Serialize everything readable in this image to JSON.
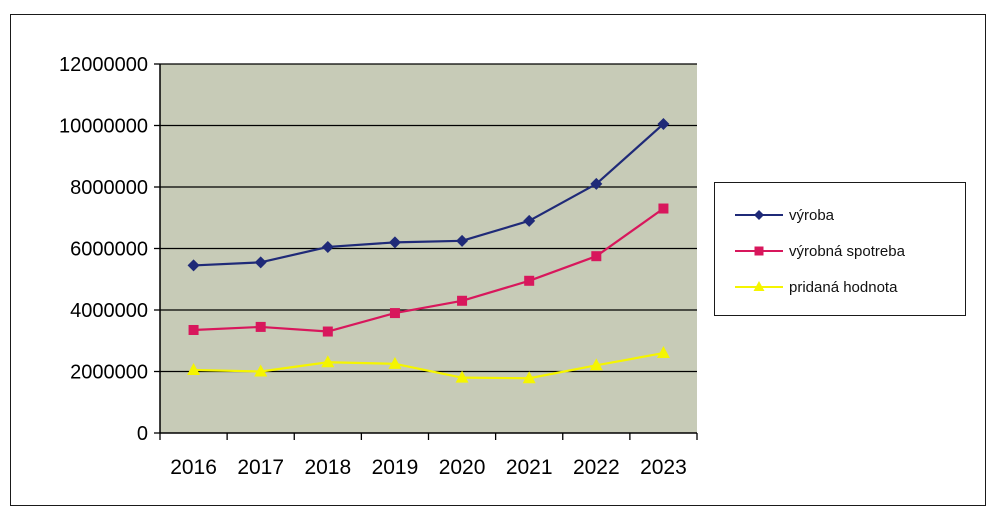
{
  "chart_data": {
    "type": "line",
    "categories": [
      "2016",
      "2017",
      "2018",
      "2019",
      "2020",
      "2021",
      "2022",
      "2023"
    ],
    "series": [
      {
        "name": "výroba",
        "values": [
          5450000,
          5550000,
          6050000,
          6200000,
          6250000,
          6900000,
          8100000,
          10050000
        ],
        "color": "#1f2a78",
        "marker": "diamond"
      },
      {
        "name": "výrobná spotreba",
        "values": [
          3350000,
          3450000,
          3300000,
          3900000,
          4300000,
          4950000,
          5750000,
          7300000
        ],
        "color": "#d8175c",
        "marker": "square"
      },
      {
        "name": "pridaná hodnota",
        "values": [
          2050000,
          2000000,
          2300000,
          2250000,
          1800000,
          1780000,
          2200000,
          2600000
        ],
        "color": "#f5f500",
        "marker": "triangle"
      }
    ],
    "yticks": [
      "0",
      "2000000",
      "4000000",
      "6000000",
      "8000000",
      "10000000",
      "12000000"
    ],
    "ylim": [
      0,
      12000000
    ],
    "grid": true,
    "legend_position": "right",
    "plot_background": "#c7cbb7"
  }
}
